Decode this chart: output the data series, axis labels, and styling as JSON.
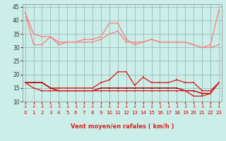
{
  "x": [
    0,
    1,
    2,
    3,
    4,
    5,
    6,
    7,
    8,
    9,
    10,
    11,
    12,
    13,
    14,
    15,
    16,
    17,
    18,
    19,
    20,
    21,
    22,
    23
  ],
  "line1": [
    43,
    31,
    31,
    34,
    31,
    32,
    32,
    32,
    32,
    33,
    35,
    36,
    32,
    32,
    32,
    33,
    32,
    32,
    32,
    32,
    31,
    30,
    31,
    44
  ],
  "line2": [
    43,
    35,
    34,
    34,
    32,
    32,
    32,
    33,
    33,
    34,
    39,
    39,
    33,
    31,
    32,
    33,
    32,
    32,
    32,
    32,
    31,
    30,
    30,
    31
  ],
  "line3": [
    17,
    17,
    17,
    15,
    15,
    15,
    15,
    15,
    15,
    17,
    18,
    21,
    21,
    16,
    19,
    17,
    17,
    17,
    18,
    17,
    17,
    14,
    14,
    17
  ],
  "line4": [
    17,
    17,
    17,
    15,
    14,
    14,
    14,
    14,
    14,
    15,
    15,
    15,
    15,
    15,
    15,
    15,
    15,
    15,
    15,
    14,
    14,
    13,
    13,
    17
  ],
  "line5": [
    17,
    15,
    14,
    14,
    14,
    14,
    14,
    14,
    14,
    14,
    14,
    14,
    14,
    14,
    14,
    14,
    14,
    14,
    14,
    14,
    12,
    12,
    13,
    17
  ],
  "color_light": "#f08888",
  "color_dark": "#dd2222",
  "color_darkest": "#aa0000",
  "bg_color": "#cceee8",
  "grid_color": "#99bbbb",
  "xlabel": "Vent moyen/en rafales ( km/h )",
  "ylim": [
    10,
    46
  ],
  "xlim": [
    -0.3,
    23.3
  ],
  "yticks": [
    10,
    15,
    20,
    25,
    30,
    35,
    40,
    45
  ],
  "xticks": [
    0,
    1,
    2,
    3,
    4,
    5,
    6,
    7,
    8,
    9,
    10,
    11,
    12,
    13,
    14,
    15,
    16,
    17,
    18,
    19,
    20,
    21,
    22,
    23
  ]
}
